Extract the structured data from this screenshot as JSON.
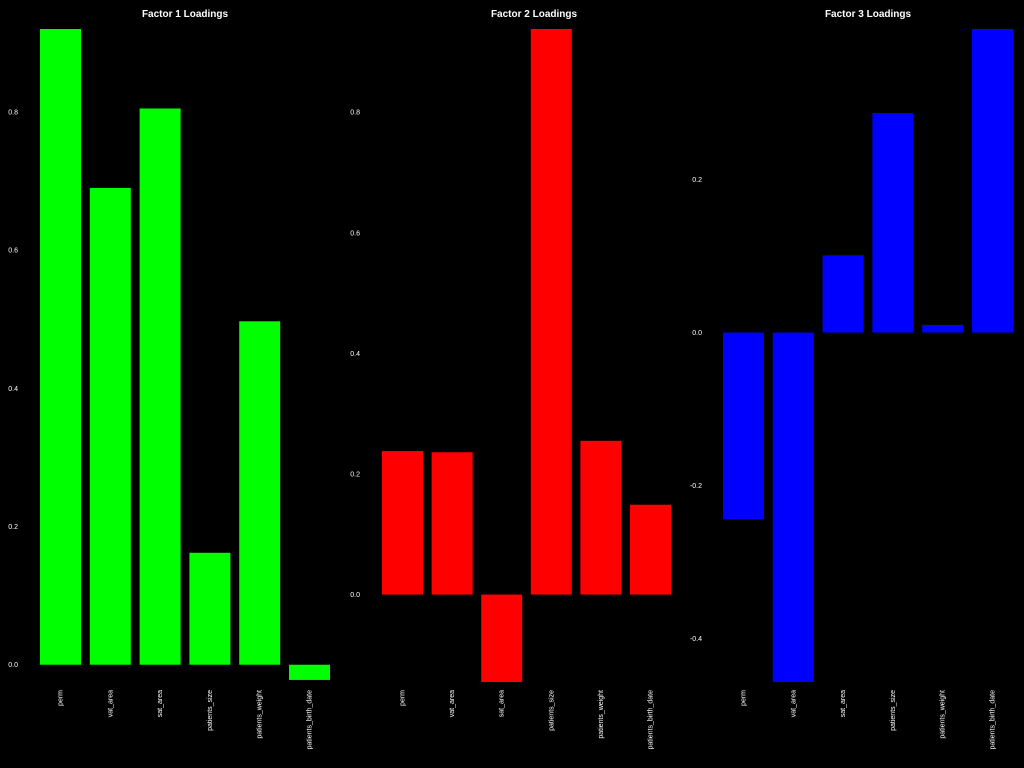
{
  "chart_data": [
    {
      "type": "bar",
      "title": "Factor 1 Loadings",
      "color": "#00ff00",
      "categories": [
        "perm",
        "vat_area",
        "sat_area",
        "patients_size",
        "patients_weight",
        "patients_birth_date"
      ],
      "values": [
        0.92,
        0.69,
        0.805,
        0.162,
        0.497,
        -0.022
      ],
      "yticks": [
        0.0,
        0.2,
        0.4,
        0.6,
        0.8
      ],
      "ytick_labels": [
        "0.0",
        "0.2",
        "0.4",
        "0.6",
        "0.8"
      ],
      "ylim": [
        -0.025,
        0.92
      ]
    },
    {
      "type": "bar",
      "title": "Factor 2 Loadings",
      "color": "#ff0000",
      "categories": [
        "perm",
        "vat_area",
        "sat_area",
        "patients_size",
        "patients_weight",
        "patients_birth_date"
      ],
      "values": [
        0.238,
        0.236,
        -0.145,
        0.938,
        0.255,
        0.149
      ],
      "yticks": [
        0.0,
        0.2,
        0.4,
        0.6,
        0.8
      ],
      "ytick_labels": [
        "0.0",
        "0.2",
        "0.4",
        "0.6",
        "0.8"
      ],
      "ylim": [
        -0.145,
        0.938
      ]
    },
    {
      "type": "bar",
      "title": "Factor 3 Loadings",
      "color": "#0000ff",
      "categories": [
        "perm",
        "vat_area",
        "sat_area",
        "patients_size",
        "patients_weight",
        "patients_birth_date"
      ],
      "values": [
        -0.244,
        -0.457,
        0.101,
        0.287,
        0.01,
        0.397
      ],
      "yticks": [
        -0.4,
        -0.2,
        0.0,
        0.2
      ],
      "ytick_labels": [
        "-0.4",
        "-0.2",
        "0.0",
        "0.2"
      ],
      "ylim": [
        -0.457,
        0.397
      ]
    }
  ]
}
